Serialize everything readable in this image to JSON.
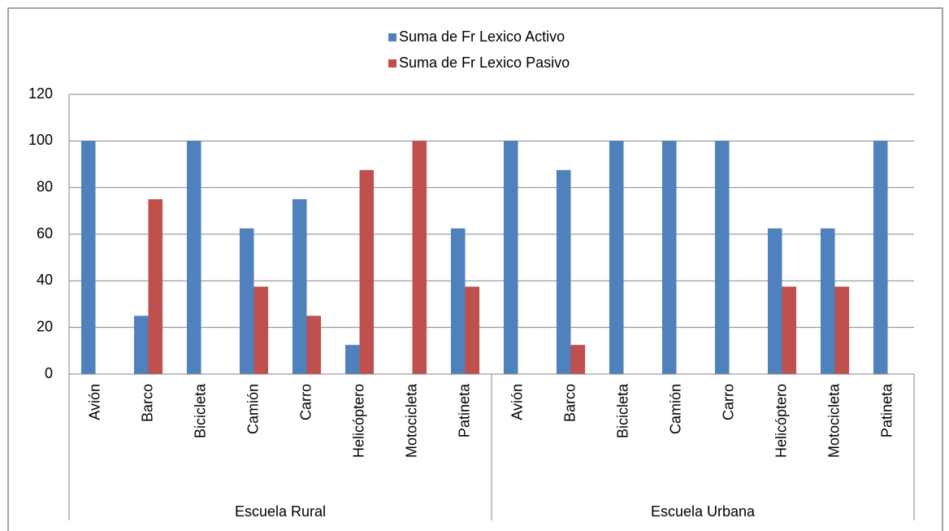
{
  "chart_data": {
    "type": "bar",
    "groups": [
      {
        "name": "Escuela Rural",
        "categories": [
          "Avión",
          "Barco",
          "Bicicleta",
          "Camión",
          "Carro",
          "Helicóptero",
          "Motocicleta",
          "Patineta"
        ]
      },
      {
        "name": "Escuela Urbana",
        "categories": [
          "Avión",
          "Barco",
          "Bicicleta",
          "Camión",
          "Carro",
          "Helicóptero",
          "Motocicleta",
          "Patineta"
        ]
      }
    ],
    "series": [
      {
        "name": "Suma de Fr Lexico Activo",
        "color": "#4f81bd",
        "values": [
          100,
          25,
          100,
          62.5,
          75,
          12.5,
          0,
          62.5,
          100,
          87.5,
          100,
          100,
          100,
          62.5,
          62.5,
          100
        ]
      },
      {
        "name": "Suma de Fr Lexico Pasivo",
        "color": "#c0504d",
        "values": [
          0,
          75,
          0,
          37.5,
          25,
          87.5,
          100,
          37.5,
          0,
          12.5,
          0,
          0,
          0,
          37.5,
          37.5,
          0
        ]
      }
    ],
    "ylim": [
      0,
      120
    ],
    "yticks": [
      0,
      20,
      40,
      60,
      80,
      100,
      120
    ],
    "grid": true,
    "legend": "top"
  }
}
